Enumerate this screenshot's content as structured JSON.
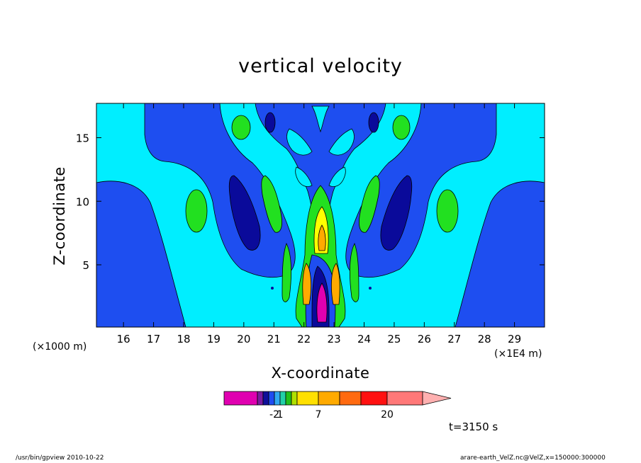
{
  "chart_data": {
    "type": "heatmap",
    "subtype": "filled-contour",
    "title": "vertical velocity",
    "xlabel": "X-coordinate",
    "ylabel": "Z-coordinate",
    "x_unit_left": "(×1000 m)",
    "x_unit_right": "(×1E4 m)",
    "xlim": [
      15.1,
      30
    ],
    "ylim": [
      0.1,
      17.7
    ],
    "x_ticks": [
      16,
      17,
      18,
      19,
      20,
      21,
      22,
      23,
      24,
      25,
      26,
      27,
      28,
      29
    ],
    "y_ticks": [
      5,
      10,
      15
    ],
    "colorbar": {
      "colors": [
        "#e000b0",
        "#7a1aa0",
        "#0f0f9a",
        "#1f4cf0",
        "#30a8f0",
        "#22d0a8",
        "#22c01a",
        "#b0e000",
        "#ffe000",
        "#ffaa00",
        "#ff6a10",
        "#ff1010",
        "#ff7878",
        "#ffb0b0"
      ],
      "tick_labels": [
        "-2",
        "1",
        "7",
        "20"
      ]
    },
    "fields": {
      "background": "#00eeff",
      "negative_weak": "#1e4ef0",
      "negative_strong": "#0a0a9a",
      "positive_weak": "#22e020",
      "positive_mid": "#ffff00",
      "positive_strong": "#ffaa00",
      "negative_core": "#e000b0"
    },
    "time_label": "t=3150 s"
  },
  "footer": {
    "left": "/usr/bin/gpview   2010-10-22",
    "right": "arare-earth_VelZ.nc@VelZ,x=150000:300000"
  }
}
